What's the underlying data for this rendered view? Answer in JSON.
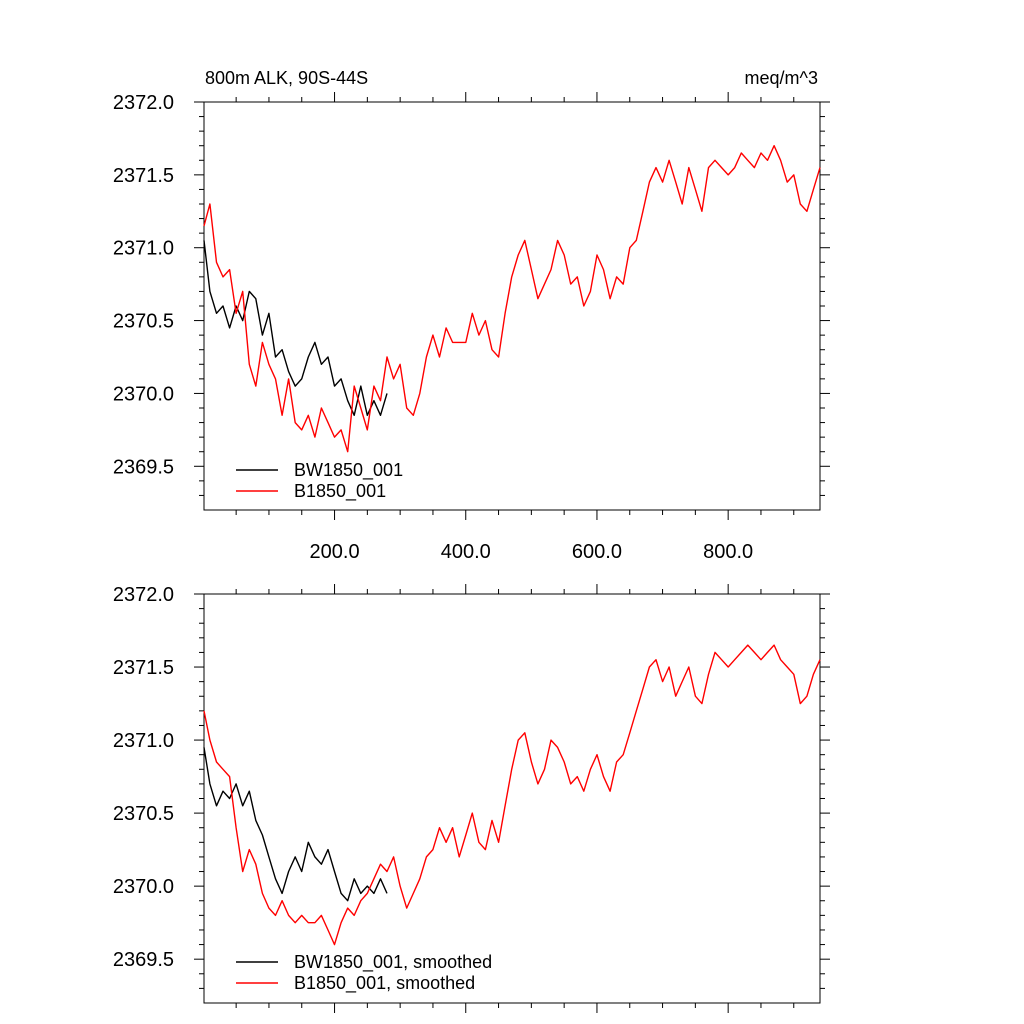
{
  "chart_data": [
    {
      "type": "line",
      "title": "800m ALK, 90S-44S",
      "units": "meq/m^3",
      "xlim": [
        1,
        940
      ],
      "ylim": [
        2369.2,
        2372.0
      ],
      "xticks": [
        200,
        400,
        600,
        800
      ],
      "xticklabels": [
        "200.0",
        "400.0",
        "600.0",
        "800.0"
      ],
      "yticks": [
        2369.5,
        2370.0,
        2370.5,
        2371.0,
        2371.5,
        2372.0
      ],
      "yticklabels": [
        "2369.5",
        "2370.0",
        "2370.5",
        "2371.0",
        "2371.5",
        "2372.0"
      ],
      "legend_position": "bottom-left",
      "grid": false,
      "series": [
        {
          "name": "BW1850_001",
          "color": "#000000",
          "x": [
            1,
            10,
            20,
            30,
            40,
            50,
            60,
            70,
            80,
            90,
            100,
            110,
            120,
            130,
            140,
            150,
            160,
            170,
            180,
            190,
            200,
            210,
            220,
            230,
            240,
            250,
            260,
            270,
            280
          ],
          "y": [
            2371.05,
            2370.7,
            2370.55,
            2370.6,
            2370.45,
            2370.6,
            2370.5,
            2370.7,
            2370.65,
            2370.4,
            2370.55,
            2370.25,
            2370.3,
            2370.15,
            2370.05,
            2370.1,
            2370.25,
            2370.35,
            2370.2,
            2370.25,
            2370.05,
            2370.1,
            2369.95,
            2369.85,
            2370.05,
            2369.85,
            2369.95,
            2369.85,
            2370.0
          ]
        },
        {
          "name": "B1850_001",
          "color": "#ff0000",
          "x": [
            1,
            10,
            20,
            30,
            40,
            50,
            60,
            70,
            80,
            90,
            100,
            110,
            120,
            130,
            140,
            150,
            160,
            170,
            180,
            190,
            200,
            210,
            220,
            230,
            240,
            250,
            260,
            270,
            280,
            290,
            300,
            310,
            320,
            330,
            340,
            350,
            360,
            370,
            380,
            390,
            400,
            410,
            420,
            430,
            440,
            450,
            460,
            470,
            480,
            490,
            500,
            510,
            520,
            530,
            540,
            550,
            560,
            570,
            580,
            590,
            600,
            610,
            620,
            630,
            640,
            650,
            660,
            670,
            680,
            690,
            700,
            710,
            720,
            730,
            740,
            750,
            760,
            770,
            780,
            790,
            800,
            810,
            820,
            830,
            840,
            850,
            860,
            870,
            880,
            890,
            900,
            910,
            920,
            930,
            940
          ],
          "y": [
            2371.15,
            2371.3,
            2370.9,
            2370.8,
            2370.85,
            2370.55,
            2370.7,
            2370.2,
            2370.05,
            2370.35,
            2370.2,
            2370.1,
            2369.85,
            2370.1,
            2369.8,
            2369.75,
            2369.85,
            2369.7,
            2369.9,
            2369.8,
            2369.7,
            2369.75,
            2369.6,
            2370.05,
            2369.9,
            2369.75,
            2370.05,
            2369.95,
            2370.25,
            2370.1,
            2370.2,
            2369.9,
            2369.85,
            2370.0,
            2370.25,
            2370.4,
            2370.25,
            2370.45,
            2370.35,
            2370.35,
            2370.35,
            2370.55,
            2370.4,
            2370.5,
            2370.3,
            2370.25,
            2370.55,
            2370.8,
            2370.95,
            2371.05,
            2370.85,
            2370.65,
            2370.75,
            2370.85,
            2371.05,
            2370.95,
            2370.75,
            2370.8,
            2370.6,
            2370.7,
            2370.95,
            2370.85,
            2370.65,
            2370.8,
            2370.75,
            2371.0,
            2371.05,
            2371.25,
            2371.45,
            2371.55,
            2371.45,
            2371.6,
            2371.45,
            2371.3,
            2371.55,
            2371.4,
            2371.25,
            2371.55,
            2371.6,
            2371.55,
            2371.5,
            2371.55,
            2371.65,
            2371.6,
            2371.55,
            2371.65,
            2371.6,
            2371.7,
            2371.6,
            2371.45,
            2371.5,
            2371.3,
            2371.25,
            2371.4,
            2371.55
          ]
        }
      ]
    },
    {
      "type": "line",
      "title": "",
      "units": "",
      "xlim": [
        1,
        940
      ],
      "ylim": [
        2369.2,
        2372.0
      ],
      "xticks": [
        200,
        400,
        600,
        800
      ],
      "xticklabels": [],
      "yticks": [
        2369.5,
        2370.0,
        2370.5,
        2371.0,
        2371.5,
        2372.0
      ],
      "yticklabels": [
        "2369.5",
        "2370.0",
        "2370.5",
        "2371.0",
        "2371.5",
        "2372.0"
      ],
      "legend_position": "bottom-left",
      "grid": false,
      "series": [
        {
          "name": "BW1850_001, smoothed",
          "color": "#000000",
          "x": [
            1,
            10,
            20,
            30,
            40,
            50,
            60,
            70,
            80,
            90,
            100,
            110,
            120,
            130,
            140,
            150,
            160,
            170,
            180,
            190,
            200,
            210,
            220,
            230,
            240,
            250,
            260,
            270,
            280
          ],
          "y": [
            2370.95,
            2370.7,
            2370.55,
            2370.65,
            2370.6,
            2370.7,
            2370.55,
            2370.65,
            2370.45,
            2370.35,
            2370.2,
            2370.05,
            2369.95,
            2370.1,
            2370.2,
            2370.1,
            2370.3,
            2370.2,
            2370.15,
            2370.25,
            2370.1,
            2369.95,
            2369.9,
            2370.05,
            2369.95,
            2370.0,
            2369.95,
            2370.05,
            2369.95
          ]
        },
        {
          "name": "B1850_001, smoothed",
          "color": "#ff0000",
          "x": [
            1,
            10,
            20,
            30,
            40,
            50,
            60,
            70,
            80,
            90,
            100,
            110,
            120,
            130,
            140,
            150,
            160,
            170,
            180,
            190,
            200,
            210,
            220,
            230,
            240,
            250,
            260,
            270,
            280,
            290,
            300,
            310,
            320,
            330,
            340,
            350,
            360,
            370,
            380,
            390,
            400,
            410,
            420,
            430,
            440,
            450,
            460,
            470,
            480,
            490,
            500,
            510,
            520,
            530,
            540,
            550,
            560,
            570,
            580,
            590,
            600,
            610,
            620,
            630,
            640,
            650,
            660,
            670,
            680,
            690,
            700,
            710,
            720,
            730,
            740,
            750,
            760,
            770,
            780,
            790,
            800,
            810,
            820,
            830,
            840,
            850,
            860,
            870,
            880,
            890,
            900,
            910,
            920,
            930,
            940
          ],
          "y": [
            2371.2,
            2371.0,
            2370.85,
            2370.8,
            2370.75,
            2370.4,
            2370.1,
            2370.25,
            2370.15,
            2369.95,
            2369.85,
            2369.8,
            2369.9,
            2369.8,
            2369.75,
            2369.8,
            2369.75,
            2369.75,
            2369.8,
            2369.7,
            2369.6,
            2369.75,
            2369.85,
            2369.8,
            2369.9,
            2369.95,
            2370.05,
            2370.15,
            2370.1,
            2370.2,
            2370.0,
            2369.85,
            2369.95,
            2370.05,
            2370.2,
            2370.25,
            2370.4,
            2370.3,
            2370.4,
            2370.2,
            2370.35,
            2370.5,
            2370.3,
            2370.25,
            2370.45,
            2370.3,
            2370.55,
            2370.8,
            2371.0,
            2371.05,
            2370.85,
            2370.7,
            2370.8,
            2371.0,
            2370.95,
            2370.85,
            2370.7,
            2370.75,
            2370.65,
            2370.8,
            2370.9,
            2370.75,
            2370.65,
            2370.85,
            2370.9,
            2371.05,
            2371.2,
            2371.35,
            2371.5,
            2371.55,
            2371.4,
            2371.5,
            2371.3,
            2371.4,
            2371.5,
            2371.3,
            2371.25,
            2371.45,
            2371.6,
            2371.55,
            2371.5,
            2371.55,
            2371.6,
            2371.65,
            2371.6,
            2371.55,
            2371.6,
            2371.65,
            2371.55,
            2371.5,
            2371.45,
            2371.25,
            2371.3,
            2371.45,
            2371.55
          ]
        }
      ]
    }
  ]
}
